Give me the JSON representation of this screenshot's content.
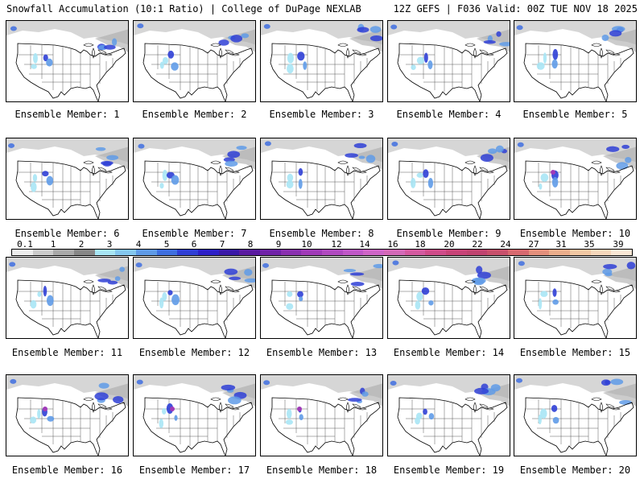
{
  "header": {
    "title": "Snowfall Accumulation (10:1 Ratio) | College of DuPage NEXLAB",
    "run_info": "12Z GEFS | F036 Valid: 00Z TUE NOV 18 2025"
  },
  "colors": {
    "land_background": "#ffffff",
    "canada_snow_gray": "#c8c8c8",
    "state_borders": "#000000"
  },
  "colorbar": {
    "tick_labels": [
      "0.1",
      "1",
      "2",
      "3",
      "4",
      "5",
      "6",
      "7",
      "8",
      "9",
      "10",
      "12",
      "14",
      "16",
      "18",
      "20",
      "22",
      "24",
      "27",
      "31",
      "35",
      "39"
    ],
    "colors": [
      "#eeeeee",
      "#cccccc",
      "#aaaaaa",
      "#888888",
      "#a8e6f5",
      "#85c8f0",
      "#5f9be8",
      "#3f6fe0",
      "#2f3fd6",
      "#2d1fc8",
      "#3a18a8",
      "#5a1aa0",
      "#7022a8",
      "#8a30b0",
      "#a03ab8",
      "#b04ac0",
      "#c058c8",
      "#cf66c8",
      "#d46ab8",
      "#d45aa0",
      "#d04c8a",
      "#c84478",
      "#c04470",
      "#c8506c",
      "#d86a70",
      "#e4907c",
      "#ecae8c",
      "#f2c8a4",
      "#f6d8bc",
      "#fae8d6"
    ]
  },
  "panels": [
    {
      "label": "Ensemble Member: 1"
    },
    {
      "label": "Ensemble Member: 2"
    },
    {
      "label": "Ensemble Member: 3"
    },
    {
      "label": "Ensemble Member: 4"
    },
    {
      "label": "Ensemble Member: 5"
    },
    {
      "label": "Ensemble Member: 6"
    },
    {
      "label": "Ensemble Member: 7"
    },
    {
      "label": "Ensemble Member: 8"
    },
    {
      "label": "Ensemble Member: 9"
    },
    {
      "label": "Ensemble Member: 10"
    },
    {
      "label": "Ensemble Member: 11"
    },
    {
      "label": "Ensemble Member: 12"
    },
    {
      "label": "Ensemble Member: 13"
    },
    {
      "label": "Ensemble Member: 14"
    },
    {
      "label": "Ensemble Member: 15"
    },
    {
      "label": "Ensemble Member: 16"
    },
    {
      "label": "Ensemble Member: 17"
    },
    {
      "label": "Ensemble Member: 18"
    },
    {
      "label": "Ensemble Member: 19"
    },
    {
      "label": "Ensemble Member: 20"
    }
  ]
}
